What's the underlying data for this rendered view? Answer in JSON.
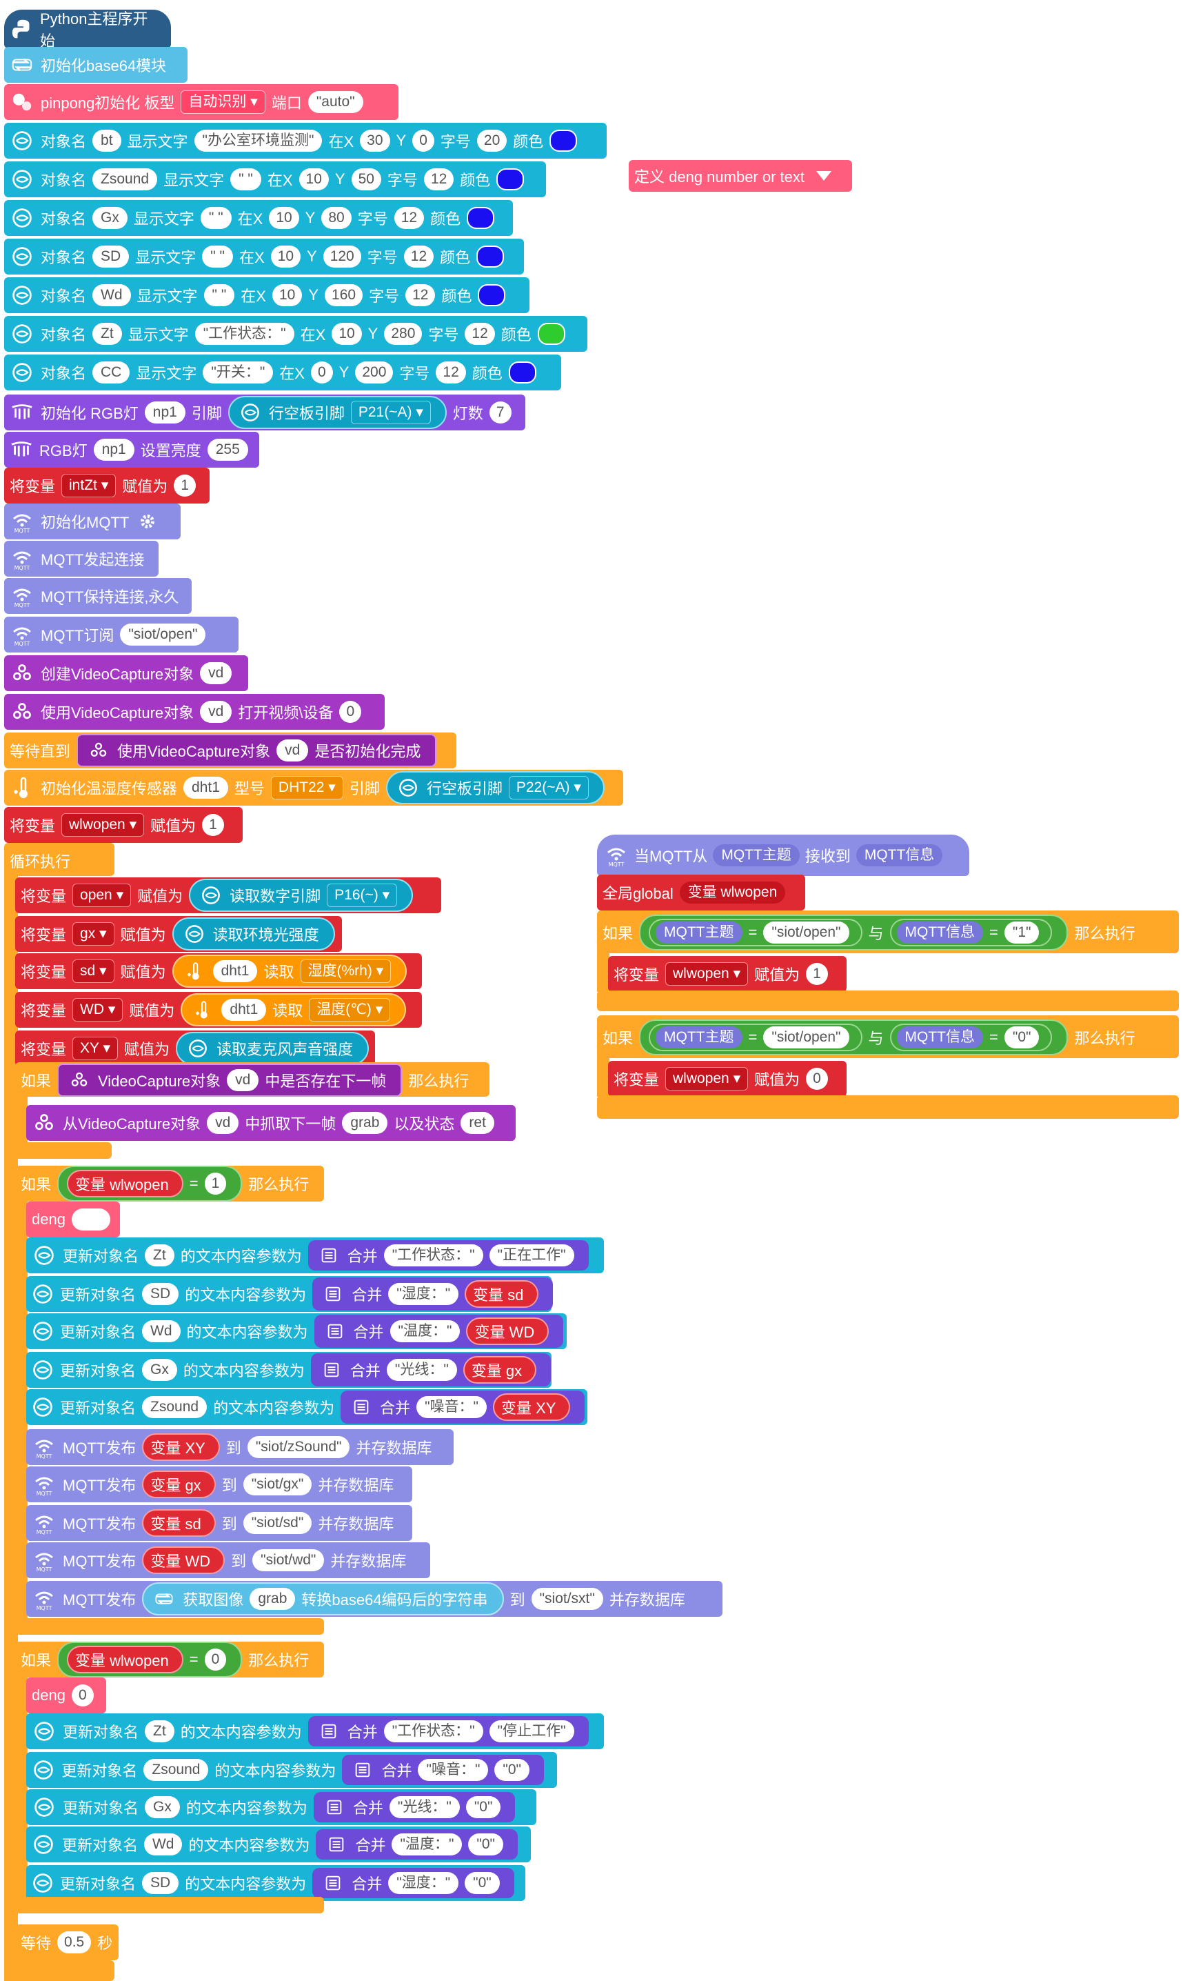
{
  "main_program": {
    "hat_label": "Python主程序开始",
    "base64_init": "初始化base64模块",
    "pinpong": {
      "label": "pinpong初始化 板型",
      "board": "自动识别",
      "port_label": "端口",
      "port": "\"auto\""
    },
    "displays": [
      {
        "obj": "bt",
        "text": "\"办公室环境监测\"",
        "x": "30",
        "y": "0",
        "size": "20",
        "color": "#1a0ff0"
      },
      {
        "obj": "Zsound",
        "text": "\" \"",
        "x": "10",
        "y": "50",
        "size": "12",
        "color": "#1a0ff0"
      },
      {
        "obj": "Gx",
        "text": "\" \"",
        "x": "10",
        "y": "80",
        "size": "12",
        "color": "#1a0ff0"
      },
      {
        "obj": "SD",
        "text": "\" \"",
        "x": "10",
        "y": "120",
        "size": "12",
        "color": "#1a0ff0"
      },
      {
        "obj": "Wd",
        "text": "\" \"",
        "x": "10",
        "y": "160",
        "size": "12",
        "color": "#1a0ff0"
      },
      {
        "obj": "Zt",
        "text": "\"工作状态：\"",
        "x": "10",
        "y": "280",
        "size": "12",
        "color": "#2ecc2e"
      },
      {
        "obj": "CC",
        "text": "\"开关：\"",
        "x": "0",
        "y": "200",
        "size": "12",
        "color": "#1a0ff0"
      }
    ],
    "labels": {
      "obj_name": "对象名",
      "show_text": "显示文字",
      "at_x": "在X",
      "y": "Y",
      "font_size": "字号",
      "color": "颜色"
    },
    "rgb_init": {
      "label": "初始化 RGB灯",
      "var": "np1",
      "pin_label": "引脚",
      "board_pin": "行空板引脚",
      "pin": "P21(~A)",
      "count_label": "灯数",
      "count": "7"
    },
    "rgb_brightness": {
      "label": "RGB灯",
      "var": "np1",
      "set": "设置亮度",
      "value": "255"
    },
    "set_intzt": {
      "label": "将变量",
      "var": "intZt",
      "assign": "赋值为",
      "value": "1"
    },
    "mqtt_init": "初始化MQTT",
    "mqtt_connect": "MQTT发起连接",
    "mqtt_keep": "MQTT保持连接,永久",
    "mqtt_sub": {
      "label": "MQTT订阅",
      "topic": "\"siot/open\""
    },
    "create_vc": {
      "label": "创建VideoCapture对象",
      "var": "vd"
    },
    "open_vc": {
      "label": "使用VideoCapture对象",
      "var": "vd",
      "action": "打开视频\\设备",
      "value": "0"
    },
    "wait_until": {
      "label": "等待直到",
      "inner": "使用VideoCapture对象",
      "var": "vd",
      "tail": "是否初始化完成"
    },
    "dht_init": {
      "label": "初始化温湿度传感器",
      "var": "dht1",
      "type_label": "型号",
      "type": "DHT22",
      "pin_label": "引脚",
      "board_pin": "行空板引脚",
      "pin": "P22(~A)"
    },
    "set_wlwopen": {
      "label": "将变量",
      "var": "wlwopen",
      "assign": "赋值为",
      "value": "1"
    },
    "loop_label": "循环执行",
    "loop_sets": [
      {
        "var": "open",
        "reader": "读取数字引脚",
        "arg": "P16(~)"
      },
      {
        "var": "gx",
        "reader": "读取环境光强度",
        "arg": ""
      },
      {
        "var": "sd",
        "reader": "dht1",
        "arg": "湿度(%rh)"
      },
      {
        "var": "WD",
        "reader": "dht1",
        "arg": "温度(℃)"
      },
      {
        "var": "XY",
        "reader": "读取麦克风声音强度",
        "arg": ""
      }
    ],
    "read_label": "读取",
    "if_frame": {
      "if": "如果",
      "inner": "VideoCapture对象",
      "var": "vd",
      "tail": "中是否存在下一帧",
      "then": "那么执行"
    },
    "grab": {
      "label": "从VideoCapture对象",
      "var": "vd",
      "mid": "中抓取下一帧",
      "grab": "grab",
      "state": "以及状态",
      "ret": "ret"
    },
    "if_open1": {
      "if": "如果",
      "var": "变量 wlwopen",
      "eq": "=",
      "value": "1",
      "then": "那么执行"
    },
    "deng1": {
      "label": "deng",
      "value": ""
    },
    "update_label": "更新对象名",
    "update_mid": "的文本内容参数为",
    "merge": "合并",
    "updates1": [
      {
        "obj": "Zt",
        "a": "\"工作状态：\"",
        "b": "\"正在工作\""
      },
      {
        "obj": "SD",
        "a": "\"湿度：\"",
        "b": "变量 sd"
      },
      {
        "obj": "Wd",
        "a": "\"温度：\"",
        "b": "变量 WD"
      },
      {
        "obj": "Gx",
        "a": "\"光线：\"",
        "b": "变量 gx"
      },
      {
        "obj": "Zsound",
        "a": "\"噪音：\"",
        "b": "变量 XY"
      }
    ],
    "publish_label": "MQTT发布",
    "publish_to": "到",
    "publish_tail": "并存数据库",
    "publishes": [
      {
        "var": "变量 XY",
        "topic": "\"siot/zSound\""
      },
      {
        "var": "变量 gx",
        "topic": "\"siot/gx\""
      },
      {
        "var": "变量 sd",
        "topic": "\"siot/sd\""
      },
      {
        "var": "变量 WD",
        "topic": "\"siot/wd\""
      }
    ],
    "publish_img": {
      "get": "获取图像",
      "grab": "grab",
      "conv": "转换base64编码后的字符串",
      "topic": "\"siot/sxt\""
    },
    "if_open0": {
      "if": "如果",
      "var": "变量 wlwopen",
      "eq": "=",
      "value": "0",
      "then": "那么执行"
    },
    "deng0": {
      "label": "deng",
      "value": "0"
    },
    "updates0": [
      {
        "obj": "Zt",
        "a": "\"工作状态：\"",
        "b": "\"停止工作\""
      },
      {
        "obj": "Zsound",
        "a": "\"噪音：\"",
        "b": "\"0\""
      },
      {
        "obj": "Gx",
        "a": "\"光线：\"",
        "b": "\"0\""
      },
      {
        "obj": "Wd",
        "a": "\"温度：\"",
        "b": "\"0\""
      },
      {
        "obj": "SD",
        "a": "\"湿度：\"",
        "b": "\"0\""
      }
    ],
    "wait": {
      "label": "等待",
      "value": "0.5",
      "unit": "秒"
    }
  },
  "define_block": {
    "label": "定义 deng number or text"
  },
  "mqtt_handler": {
    "hat": "当MQTT从",
    "topic": "MQTT主题",
    "received": "接收到",
    "msg": "MQTT信息",
    "global": "全局global",
    "global_var": "变量 wlwopen",
    "if1": {
      "if": "如果",
      "topic": "MQTT主题",
      "eq": "=",
      "topic_val": "\"siot/open\"",
      "and": "与",
      "msg": "MQTT信息",
      "msg_val": "\"1\"",
      "then": "那么执行"
    },
    "set1": {
      "label": "将变量",
      "var": "wlwopen",
      "assign": "赋值为",
      "value": "1"
    },
    "if2": {
      "if": "如果",
      "topic": "MQTT主题",
      "eq": "=",
      "topic_val": "\"siot/open\"",
      "and": "与",
      "msg": "MQTT信息",
      "msg_val": "\"0\"",
      "then": "那么执行"
    },
    "set2": {
      "label": "将变量",
      "var": "wlwopen",
      "assign": "赋值为",
      "value": "0"
    }
  }
}
